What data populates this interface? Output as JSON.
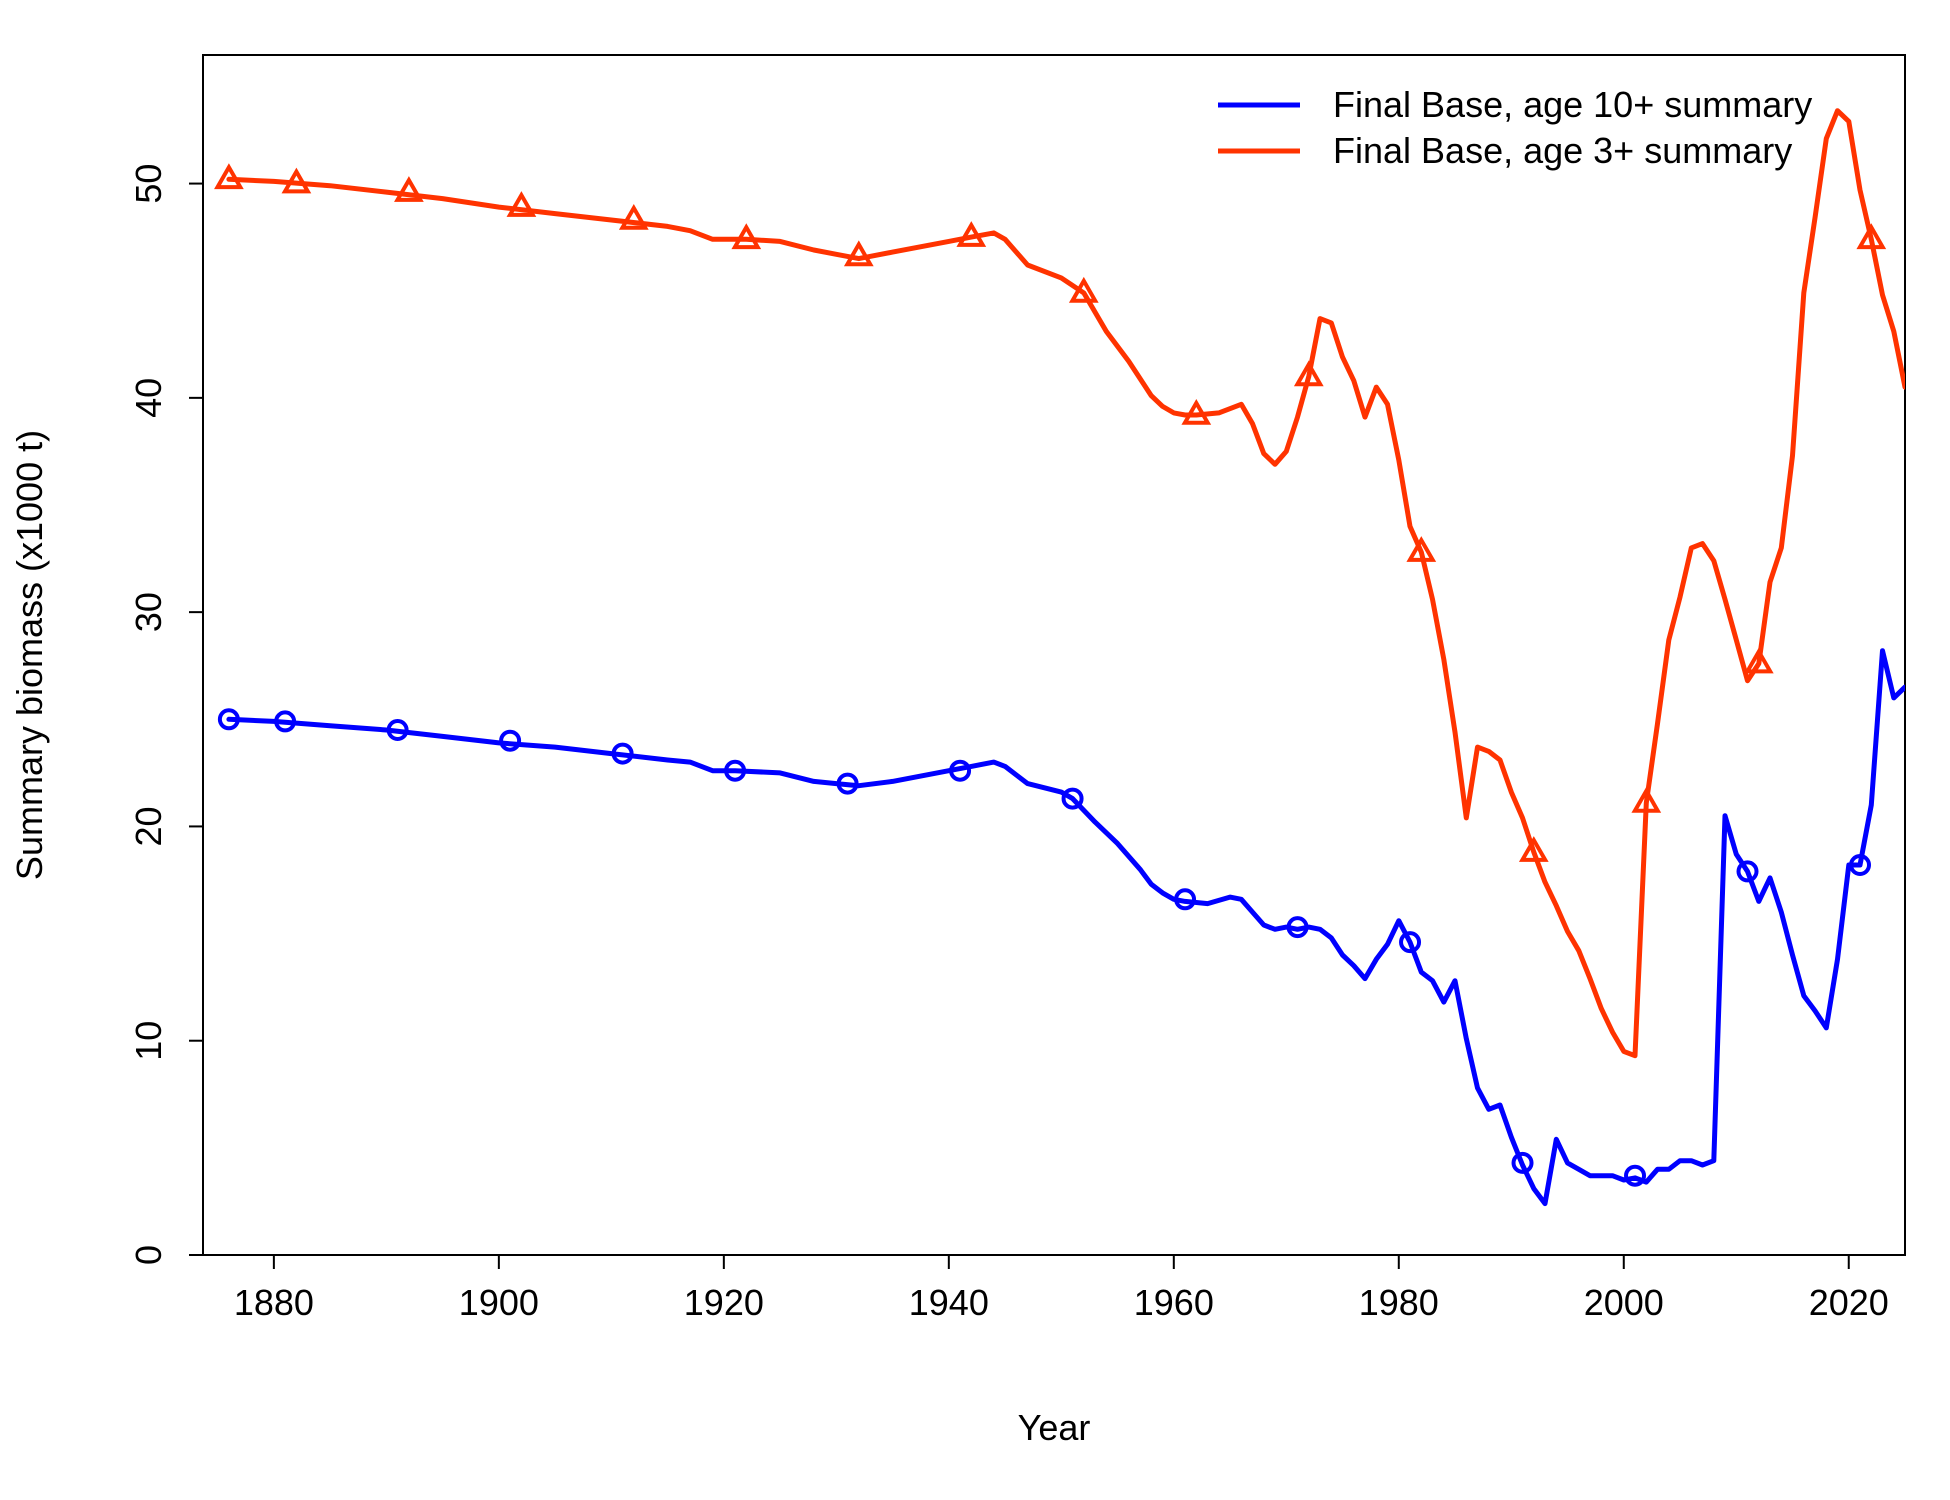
{
  "chart_data": {
    "type": "line",
    "xlabel": "Year",
    "ylabel": "Summary biomass (x1000 t)",
    "xlim": [
      1873.7,
      2025
    ],
    "ylim": [
      0,
      56
    ],
    "x_ticks": [
      1880,
      1900,
      1920,
      1940,
      1960,
      1980,
      2000,
      2020
    ],
    "y_ticks": [
      0,
      10,
      20,
      30,
      40,
      50
    ],
    "x_tick_labels": [
      "1880",
      "1900",
      "1920",
      "1940",
      "1960",
      "1980",
      "2000",
      "2020"
    ],
    "y_tick_labels": [
      "0",
      "10",
      "20",
      "30",
      "40",
      "50"
    ],
    "grid": false,
    "legend_position": "top-right",
    "series": [
      {
        "name": "Final Base, age 10+ summary",
        "color": "#0000ff",
        "marker": "circle",
        "x": [
          1876,
          1880,
          1885,
          1890,
          1895,
          1900,
          1905,
          1910,
          1915,
          1917,
          1919,
          1920,
          1921,
          1925,
          1928,
          1930,
          1932,
          1935,
          1940,
          1942,
          1944,
          1945,
          1947,
          1950,
          1951,
          1953,
          1955,
          1957,
          1958,
          1959,
          1960,
          1961,
          1963,
          1965,
          1966,
          1967,
          1968,
          1969,
          1970,
          1971,
          1972,
          1973,
          1974,
          1975,
          1976,
          1977,
          1978,
          1979,
          1980,
          1981,
          1982,
          1983,
          1984,
          1985,
          1986,
          1987,
          1988,
          1989,
          1990,
          1991,
          1992,
          1993,
          1994,
          1995,
          1996,
          1997,
          1998,
          1999,
          2000,
          2001,
          2002,
          2003,
          2004,
          2005,
          2006,
          2007,
          2008,
          2009,
          2010,
          2011,
          2012,
          2013,
          2014,
          2015,
          2016,
          2017,
          2018,
          2019,
          2020,
          2021,
          2022,
          2023,
          2024,
          2025
        ],
        "y": [
          25.0,
          24.9,
          24.7,
          24.5,
          24.2,
          23.9,
          23.7,
          23.4,
          23.1,
          23.0,
          22.6,
          22.6,
          22.6,
          22.5,
          22.1,
          22.0,
          21.9,
          22.1,
          22.6,
          22.8,
          23.0,
          22.8,
          22.0,
          21.6,
          21.3,
          20.2,
          19.2,
          18.0,
          17.3,
          16.9,
          16.6,
          16.5,
          16.4,
          16.7,
          16.6,
          16.0,
          15.4,
          15.2,
          15.3,
          15.2,
          15.3,
          15.2,
          14.8,
          14.0,
          13.5,
          12.9,
          13.8,
          14.5,
          15.6,
          14.6,
          13.2,
          12.8,
          11.8,
          12.8,
          10.1,
          7.8,
          6.8,
          7.0,
          5.5,
          4.2,
          3.1,
          2.4,
          5.4,
          4.3,
          4.0,
          3.7,
          3.7,
          3.7,
          3.5,
          3.6,
          3.4,
          4.0,
          4.0,
          4.4,
          4.4,
          4.2,
          4.4,
          20.5,
          18.7,
          17.9,
          16.5,
          17.6,
          16.0,
          14.0,
          12.1,
          11.4,
          10.6,
          13.8,
          18.2,
          18.2,
          21.0,
          28.2,
          26.0,
          26.5
        ],
        "marker_x": [
          1876,
          1881,
          1891,
          1901,
          1911,
          1921,
          1931,
          1941,
          1951,
          1961,
          1971,
          1981,
          1991,
          2001,
          2011,
          2021
        ],
        "marker_y": [
          25.0,
          24.9,
          24.5,
          24.0,
          23.4,
          22.6,
          22.0,
          22.6,
          21.3,
          16.6,
          15.3,
          14.6,
          4.3,
          3.7,
          17.9,
          18.2
        ]
      },
      {
        "name": "Final Base, age 3+ summary",
        "color": "#ff3300",
        "marker": "triangle",
        "x": [
          1876,
          1880,
          1885,
          1890,
          1895,
          1900,
          1905,
          1910,
          1915,
          1917,
          1919,
          1922,
          1925,
          1928,
          1930,
          1932,
          1935,
          1940,
          1942,
          1944,
          1945,
          1947,
          1950,
          1952,
          1954,
          1956,
          1958,
          1959,
          1960,
          1961,
          1962,
          1964,
          1966,
          1967,
          1968,
          1969,
          1970,
          1971,
          1972,
          1973,
          1974,
          1975,
          1976,
          1977,
          1978,
          1979,
          1980,
          1981,
          1982,
          1983,
          1984,
          1985,
          1986,
          1987,
          1988,
          1989,
          1990,
          1991,
          1992,
          1993,
          1994,
          1995,
          1996,
          1997,
          1998,
          1999,
          2000,
          2001,
          2002,
          2003,
          2004,
          2005,
          2006,
          2007,
          2008,
          2009,
          2010,
          2011,
          2012,
          2013,
          2014,
          2015,
          2016,
          2017,
          2018,
          2019,
          2020,
          2021,
          2022,
          2023,
          2024,
          2025
        ],
        "y": [
          50.2,
          50.1,
          49.9,
          49.6,
          49.3,
          48.9,
          48.6,
          48.3,
          48.0,
          47.8,
          47.4,
          47.4,
          47.3,
          46.9,
          46.7,
          46.5,
          46.8,
          47.3,
          47.5,
          47.7,
          47.4,
          46.2,
          45.6,
          44.9,
          43.1,
          41.7,
          40.1,
          39.6,
          39.3,
          39.2,
          39.2,
          39.3,
          39.7,
          38.8,
          37.4,
          36.9,
          37.5,
          39.1,
          41.0,
          43.7,
          43.5,
          41.9,
          40.8,
          39.1,
          40.5,
          39.7,
          37.1,
          34.0,
          32.8,
          30.6,
          27.8,
          24.4,
          20.4,
          23.7,
          23.5,
          23.1,
          21.6,
          20.4,
          18.8,
          17.4,
          16.3,
          15.1,
          14.2,
          12.9,
          11.5,
          10.4,
          9.5,
          9.3,
          21.1,
          24.8,
          28.7,
          30.7,
          33.0,
          33.2,
          32.4,
          30.6,
          28.7,
          26.8,
          27.6,
          31.4,
          33.0,
          37.3,
          44.9,
          48.4,
          52.1,
          53.4,
          52.9,
          49.7,
          47.4,
          44.8,
          43.1,
          40.5
        ],
        "marker_x": [
          1876,
          1882,
          1892,
          1902,
          1912,
          1922,
          1932,
          1942,
          1952,
          1962,
          1972,
          1982,
          1992,
          2002,
          2012,
          2022
        ],
        "marker_y": [
          50.2,
          50.0,
          49.6,
          48.9,
          48.3,
          47.4,
          46.6,
          47.5,
          44.9,
          39.2,
          41.0,
          32.8,
          18.8,
          21.1,
          27.6,
          47.4
        ]
      }
    ]
  }
}
